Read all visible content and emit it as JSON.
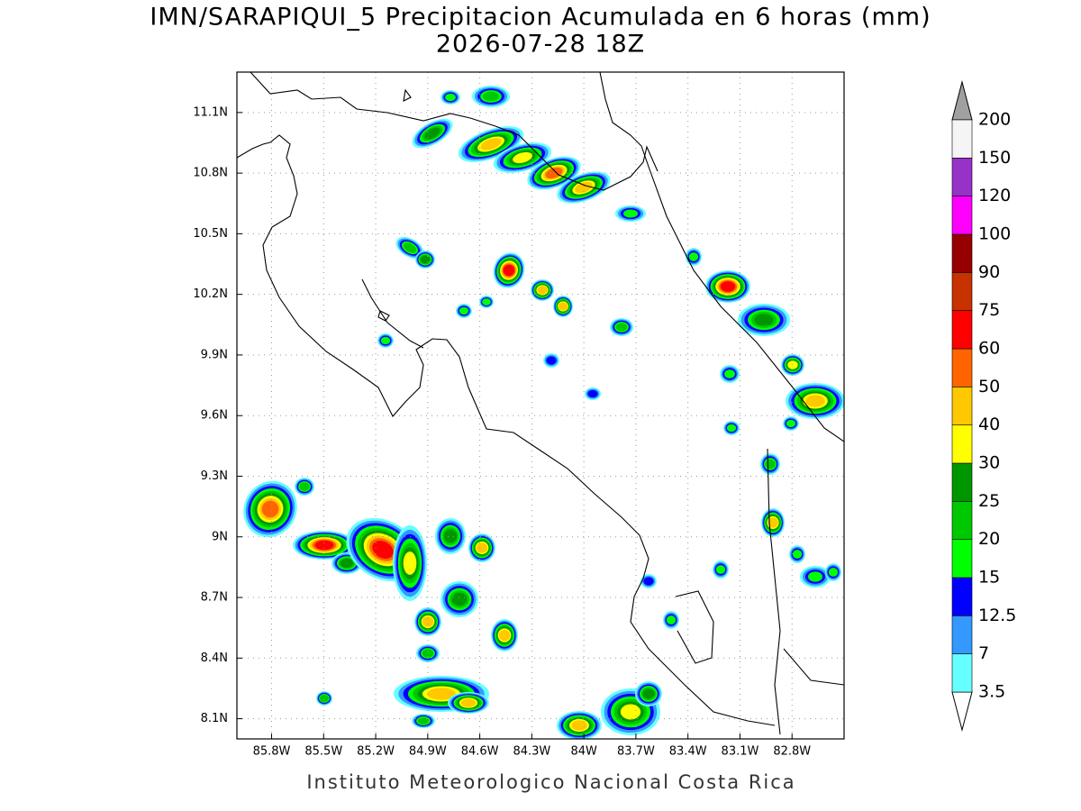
{
  "title": "IMN/SARAPIQUI_5 Precipitacion Acumulada en 6 horas (mm)",
  "subtitle": "2026-07-28 18Z",
  "map": {
    "lon_range": [
      -86.0,
      -82.5
    ],
    "lat_range": [
      8.0,
      11.3
    ],
    "lon_ticks": [
      {
        "value": -85.8,
        "label": "85.8W"
      },
      {
        "value": -85.5,
        "label": "85.5W"
      },
      {
        "value": -85.2,
        "label": "85.2W"
      },
      {
        "value": -84.9,
        "label": "84.9W"
      },
      {
        "value": -84.6,
        "label": "84.6W"
      },
      {
        "value": -84.3,
        "label": "84.3W"
      },
      {
        "value": -84.0,
        "label": "84W"
      },
      {
        "value": -83.7,
        "label": "83.7W"
      },
      {
        "value": -83.4,
        "label": "83.4W"
      },
      {
        "value": -83.1,
        "label": "83.1W"
      },
      {
        "value": -82.8,
        "label": "82.8W"
      }
    ],
    "lat_ticks": [
      {
        "value": 8.1,
        "label": "8.1N"
      },
      {
        "value": 8.4,
        "label": "8.4N"
      },
      {
        "value": 8.7,
        "label": "8.7N"
      },
      {
        "value": 9.0,
        "label": "9N"
      },
      {
        "value": 9.3,
        "label": "9.3N"
      },
      {
        "value": 9.6,
        "label": "9.6N"
      },
      {
        "value": 9.9,
        "label": "9.9N"
      },
      {
        "value": 10.2,
        "label": "10.2N"
      },
      {
        "value": 10.5,
        "label": "10.5N"
      },
      {
        "value": 10.8,
        "label": "10.8N"
      },
      {
        "value": 11.1,
        "label": "11.1N"
      }
    ],
    "grid": true
  },
  "colorbar": {
    "levels": [
      3.5,
      7,
      12.5,
      15,
      20,
      25,
      30,
      40,
      50,
      60,
      75,
      90,
      100,
      120,
      150,
      200
    ],
    "colors": [
      "#66ffff",
      "#3399ff",
      "#0000ff",
      "#00ff00",
      "#00c800",
      "#009600",
      "#ffff00",
      "#ffc800",
      "#ff6400",
      "#ff0000",
      "#c83200",
      "#960000",
      "#ff00ff",
      "#9632c8",
      "#f5f5f5"
    ],
    "below_color": "#ffffff",
    "above_color": "#a0a0a0"
  },
  "footer": "Instituto Meteorologico Nacional Costa Rica"
}
